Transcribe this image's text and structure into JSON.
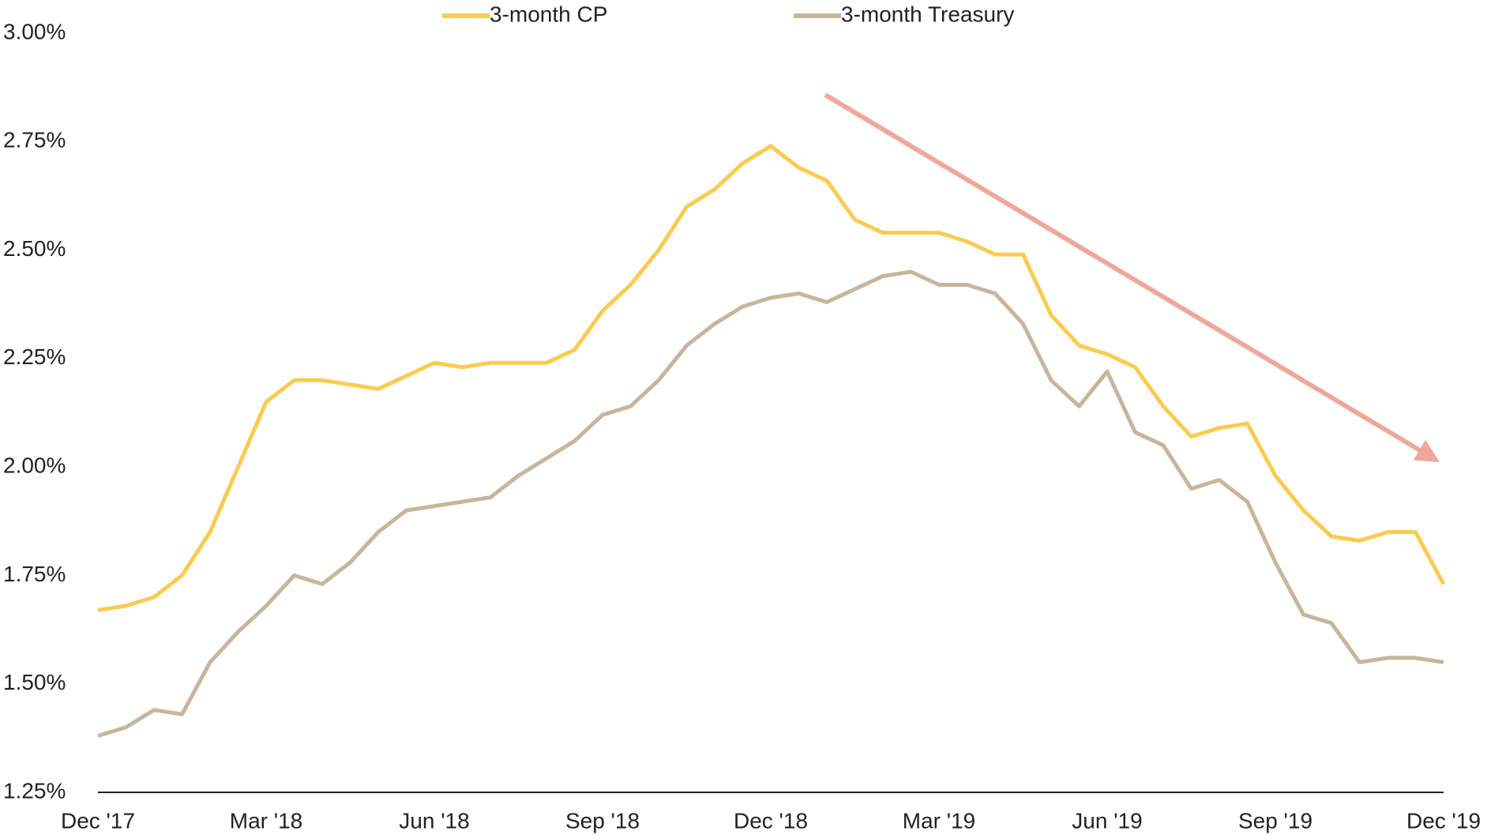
{
  "chart_data": {
    "type": "line",
    "categories": [
      "Dec '17",
      null,
      null,
      null,
      null,
      null,
      "Mar '18",
      null,
      null,
      null,
      null,
      null,
      "Jun '18",
      null,
      null,
      null,
      null,
      null,
      "Sep '18",
      null,
      null,
      null,
      null,
      null,
      "Dec '18",
      null,
      null,
      null,
      null,
      null,
      "Mar '19",
      null,
      null,
      null,
      null,
      null,
      "Jun '19",
      null,
      null,
      null,
      null,
      null,
      "Sep '19",
      null,
      null,
      null,
      null,
      null,
      "Dec '19"
    ],
    "series": [
      {
        "name": "3-month CP",
        "color": "#fbcb4f",
        "values": [
          1.67,
          1.68,
          1.7,
          1.75,
          1.85,
          2.0,
          2.15,
          2.2,
          2.2,
          2.19,
          2.18,
          2.21,
          2.24,
          2.23,
          2.24,
          2.24,
          2.24,
          2.27,
          2.36,
          2.42,
          2.5,
          2.6,
          2.64,
          2.7,
          2.74,
          2.69,
          2.66,
          2.57,
          2.54,
          2.54,
          2.54,
          2.52,
          2.49,
          2.49,
          2.35,
          2.28,
          2.26,
          2.23,
          2.14,
          2.07,
          2.09,
          2.1,
          1.98,
          1.9,
          1.84,
          1.83,
          1.85,
          1.85,
          1.73
        ]
      },
      {
        "name": "3-month Treasury",
        "color": "#c6b69e",
        "values": [
          1.38,
          1.4,
          1.44,
          1.43,
          1.55,
          1.62,
          1.68,
          1.75,
          1.73,
          1.78,
          1.85,
          1.9,
          1.91,
          1.92,
          1.93,
          1.98,
          2.02,
          2.06,
          2.12,
          2.14,
          2.2,
          2.28,
          2.33,
          2.37,
          2.39,
          2.4,
          2.38,
          2.41,
          2.44,
          2.45,
          2.42,
          2.42,
          2.4,
          2.33,
          2.2,
          2.14,
          2.22,
          2.08,
          2.05,
          1.95,
          1.97,
          1.92,
          1.78,
          1.66,
          1.64,
          1.55,
          1.56,
          1.56,
          1.55
        ]
      }
    ],
    "ylim": [
      1.25,
      3.0
    ],
    "yticks": [
      {
        "value": 1.25,
        "label": "1.25%"
      },
      {
        "value": 1.5,
        "label": "1.50%"
      },
      {
        "value": 1.75,
        "label": "1.75%"
      },
      {
        "value": 2.0,
        "label": "2.00%"
      },
      {
        "value": 2.25,
        "label": "2.25%"
      },
      {
        "value": 2.5,
        "label": "2.50%"
      },
      {
        "value": 2.75,
        "label": "2.75%"
      },
      {
        "value": 3.0,
        "label": "3.00%"
      }
    ],
    "grid": false,
    "legend": "top"
  }
}
